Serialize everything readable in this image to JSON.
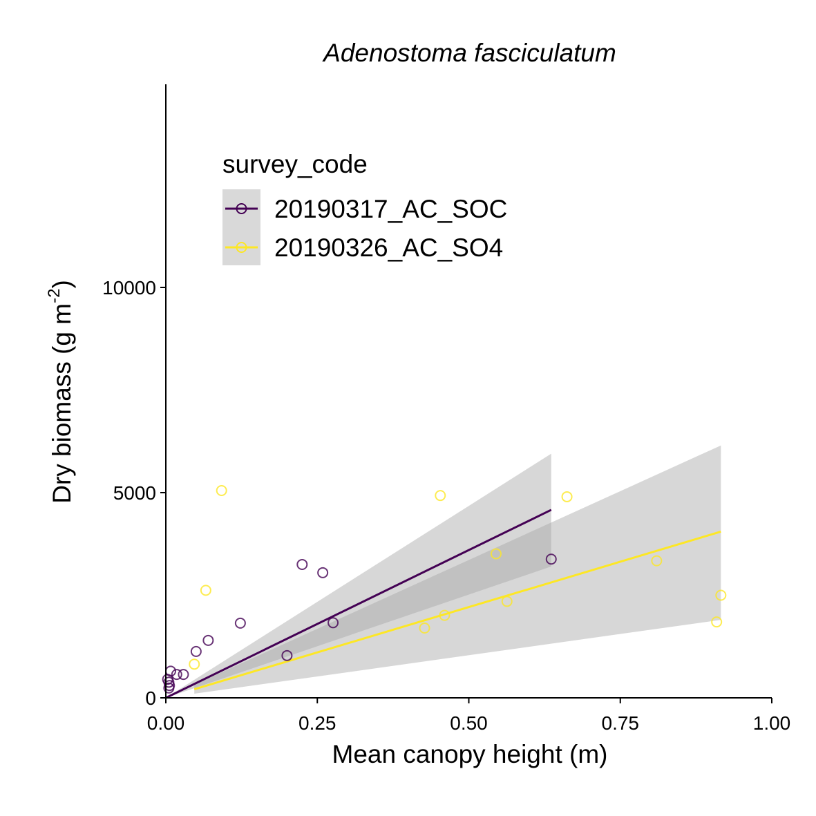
{
  "chart_data": {
    "type": "scatter",
    "title": "Adenostoma fasciculatum",
    "xlabel": "Mean canopy height (m)",
    "ylabel": "Dry biomass (g m",
    "ylabel_sup": "-2",
    "ylabel_close": ")",
    "xlim": [
      0,
      1
    ],
    "ylim": [
      0,
      14500
    ],
    "x_ticks": [
      0,
      0.25,
      0.5,
      0.75,
      1.0
    ],
    "x_tick_labels": [
      "0.00",
      "0.25",
      "0.50",
      "0.75",
      "1.00"
    ],
    "y_ticks": [
      0,
      5000,
      10000
    ],
    "y_tick_labels": [
      "0",
      "5000",
      "10000"
    ],
    "grid": false,
    "legend": {
      "title": "survey_code",
      "placement": "top-left"
    },
    "series": [
      {
        "name": "20190317_AC_SOC",
        "color": "#440154",
        "points": [
          [
            0.003,
            450
          ],
          [
            0.005,
            380
          ],
          [
            0.006,
            300
          ],
          [
            0.008,
            650
          ],
          [
            0.005,
            240
          ],
          [
            0.018,
            570
          ],
          [
            0.029,
            570
          ],
          [
            0.05,
            1130
          ],
          [
            0.07,
            1400
          ],
          [
            0.123,
            1820
          ],
          [
            0.2,
            1030
          ],
          [
            0.225,
            3250
          ],
          [
            0.259,
            3050
          ],
          [
            0.276,
            1830
          ],
          [
            0.636,
            3380
          ]
        ],
        "fit": {
          "x_start": 0.0,
          "x_end": 0.636,
          "y_start": 0,
          "y_end": 4580
        },
        "ribbon": {
          "x": [
            0.0,
            0.636
          ],
          "lower": [
            0,
            3200
          ],
          "upper": [
            0,
            5950
          ]
        }
      },
      {
        "name": "20190326_AC_SO4",
        "color": "#FDE725",
        "points": [
          [
            0.047,
            820
          ],
          [
            0.066,
            2620
          ],
          [
            0.092,
            5050
          ],
          [
            0.427,
            1700
          ],
          [
            0.453,
            4930
          ],
          [
            0.46,
            2010
          ],
          [
            0.545,
            3510
          ],
          [
            0.563,
            2350
          ],
          [
            0.662,
            4900
          ],
          [
            0.81,
            3340
          ],
          [
            0.909,
            1850
          ],
          [
            0.916,
            2500
          ]
        ],
        "fit": {
          "x_start": 0.047,
          "x_end": 0.916,
          "y_start": 210,
          "y_end": 4050
        },
        "ribbon": {
          "x": [
            0.047,
            0.916
          ],
          "lower": [
            100,
            1900
          ],
          "upper": [
            320,
            6150
          ]
        }
      }
    ]
  }
}
